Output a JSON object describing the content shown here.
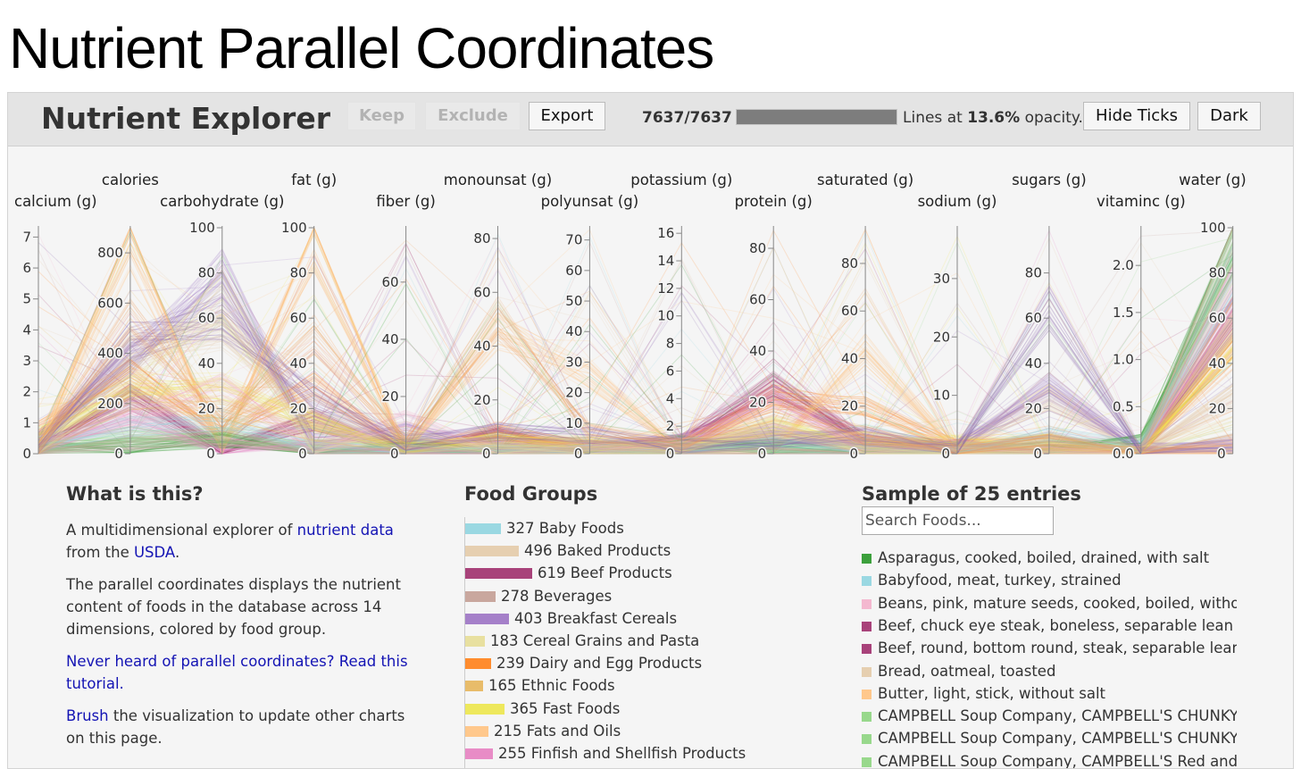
{
  "page": {
    "title": "Nutrient Parallel Coordinates"
  },
  "header": {
    "app_title": "Nutrient Explorer",
    "keep_label": "Keep",
    "exclude_label": "Exclude",
    "export_label": "Export",
    "counter": "7637/7637",
    "progress_fraction": 1.0,
    "opacity_prefix": "Lines at ",
    "opacity_value": "13.6%",
    "opacity_suffix": " opacity.",
    "hide_ticks_label": "Hide Ticks",
    "dark_label": "Dark"
  },
  "chart_data": {
    "type": "parallel-coordinates",
    "dimensions": [
      {
        "name": "calcium (g)",
        "ticks": [
          "0",
          "1",
          "2",
          "3",
          "4",
          "5",
          "6",
          "7"
        ],
        "max": 7.3
      },
      {
        "name": "calories",
        "ticks": [
          "0",
          "200",
          "400",
          "600",
          "800"
        ],
        "max": 900
      },
      {
        "name": "carbohydrate (g)",
        "ticks": [
          "0",
          "20",
          "40",
          "60",
          "80",
          "100"
        ],
        "max": 100
      },
      {
        "name": "fat (g)",
        "ticks": [
          "0",
          "20",
          "40",
          "60",
          "80",
          "100"
        ],
        "max": 100
      },
      {
        "name": "fiber (g)",
        "ticks": [
          "0",
          "20",
          "40",
          "60"
        ],
        "max": 79
      },
      {
        "name": "monounsat (g)",
        "ticks": [
          "0",
          "20",
          "40",
          "60",
          "80"
        ],
        "max": 84
      },
      {
        "name": "polyunsat (g)",
        "ticks": [
          "0",
          "10",
          "20",
          "30",
          "40",
          "50",
          "60",
          "70"
        ],
        "max": 74
      },
      {
        "name": "potassium (g)",
        "ticks": [
          "0",
          "2",
          "4",
          "6",
          "8",
          "10",
          "12",
          "14",
          "16"
        ],
        "max": 16.4
      },
      {
        "name": "protein (g)",
        "ticks": [
          "0",
          "20",
          "40",
          "60",
          "80"
        ],
        "max": 88
      },
      {
        "name": "saturated (g)",
        "ticks": [
          "0",
          "20",
          "40",
          "60",
          "80"
        ],
        "max": 95
      },
      {
        "name": "sodium (g)",
        "ticks": [
          "0",
          "10",
          "20",
          "30"
        ],
        "max": 38.7
      },
      {
        "name": "sugars (g)",
        "ticks": [
          "0",
          "20",
          "40",
          "60",
          "80"
        ],
        "max": 100
      },
      {
        "name": "vitaminc (g)",
        "ticks": [
          "0.0",
          "0.5",
          "1.0",
          "1.5",
          "2.0"
        ],
        "max": 2.4
      },
      {
        "name": "water (g)",
        "ticks": [
          "0",
          "20",
          "40",
          "60",
          "80",
          "100"
        ],
        "max": 100
      }
    ],
    "total_lines": 7637,
    "visible_lines": 7637,
    "line_opacity": 0.136
  },
  "about": {
    "heading": "What is this?",
    "p1_a": "A multidimensional explorer of ",
    "p1_link1": "nutrient data",
    "p1_b": " from the ",
    "p1_link2": "USDA",
    "p1_c": ".",
    "p2": "The parallel coordinates displays the nutrient content of foods in the database across 14 dimensions, colored by food group.",
    "p3_link": "Never heard of parallel coordinates? Read this tutorial.",
    "p4_link": "Brush",
    "p4_rest": " the visualization to update other charts on this page."
  },
  "food_groups": {
    "heading": "Food Groups",
    "items": [
      {
        "label": "327 Baby Foods",
        "count": 327,
        "color": "#9ad8e2"
      },
      {
        "label": "496 Baked Products",
        "count": 496,
        "color": "#e6cfb0"
      },
      {
        "label": "619 Beef Products",
        "count": 619,
        "color": "#a8427a"
      },
      {
        "label": "278 Beverages",
        "count": 278,
        "color": "#c9a79e"
      },
      {
        "label": "403 Breakfast Cereals",
        "count": 403,
        "color": "#a580c9"
      },
      {
        "label": "183 Cereal Grains and Pasta",
        "count": 183,
        "color": "#e8e0a0"
      },
      {
        "label": "239 Dairy and Egg Products",
        "count": 239,
        "color": "#ff8c2e"
      },
      {
        "label": "165 Ethnic Foods",
        "count": 165,
        "color": "#e8bc6a"
      },
      {
        "label": "365 Fast Foods",
        "count": 365,
        "color": "#eee85c"
      },
      {
        "label": "215 Fats and Oils",
        "count": 215,
        "color": "#ffc88c"
      },
      {
        "label": "255 Finfish and Shellfish Products",
        "count": 255,
        "color": "#e88cc6"
      }
    ]
  },
  "sample": {
    "heading": "Sample of 25 entries",
    "search_placeholder": "Search Foods...",
    "entries": [
      {
        "label": "Asparagus, cooked, boiled, drained, with salt",
        "color": "#3ca03c"
      },
      {
        "label": "Babyfood, meat, turkey, strained",
        "color": "#9ad8e2"
      },
      {
        "label": "Beans, pink, mature seeds, cooked, boiled, without salt",
        "color": "#f4b8d0"
      },
      {
        "label": "Beef, chuck eye steak, boneless, separable lean only",
        "color": "#a8427a"
      },
      {
        "label": "Beef, round, bottom round, steak, separable lean only",
        "color": "#a8427a"
      },
      {
        "label": "Bread, oatmeal, toasted",
        "color": "#e6cfb0"
      },
      {
        "label": "Butter, light, stick, without salt",
        "color": "#ffc88c"
      },
      {
        "label": "CAMPBELL Soup Company, CAMPBELL'S CHUNKY Soups",
        "color": "#98d88c"
      },
      {
        "label": "CAMPBELL Soup Company, CAMPBELL'S CHUNKY Soups",
        "color": "#98d88c"
      },
      {
        "label": "CAMPBELL Soup Company, CAMPBELL'S Red and White",
        "color": "#98d88c"
      }
    ]
  }
}
